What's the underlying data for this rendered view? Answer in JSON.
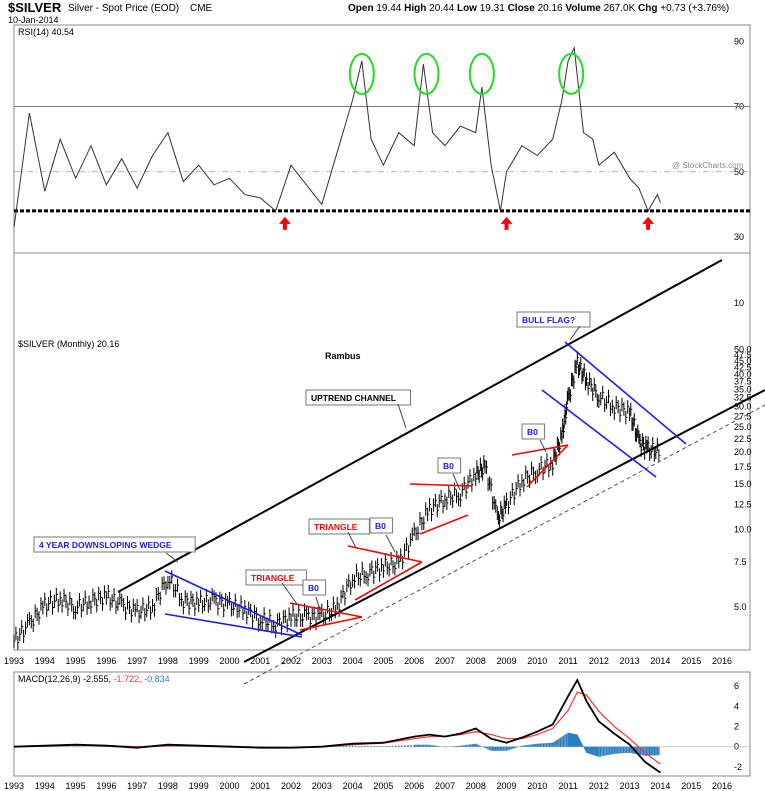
{
  "header": {
    "symbol": "$SILVER",
    "description": "Silver - Spot Price (EOD)",
    "exchange": "CME",
    "date": "10-Jan-2014",
    "quote": {
      "open_label": "Open",
      "open": "19.44",
      "high_label": "High",
      "high": "20.44",
      "low_label": "Low",
      "low": "19.31",
      "close_label": "Close",
      "close": "20.16",
      "volume_label": "Volume",
      "volume": "267.0K",
      "chg_label": "Chg",
      "chg": "+0.73 (+3.76%)"
    },
    "watermark": "@ StockCharts.com"
  },
  "colors": {
    "trend_black": "#000000",
    "pattern_blue": "#1a1aff",
    "pattern_red": "#ff0000",
    "annotation_green": "#22dd22",
    "rsi_line": "#333333",
    "macd_signal": "#ff3333",
    "histogram": "#2a7fc0"
  },
  "chart_data": [
    {
      "type": "line",
      "panel": "RSI",
      "legend": "RSI(14) 40.54",
      "ylim": [
        30,
        95
      ],
      "yticks": [
        90,
        70,
        50,
        30,
        10
      ],
      "reference_lines": [
        70,
        50,
        38
      ],
      "x": [
        1993.0,
        1993.5,
        1994.0,
        1994.5,
        1995.0,
        1995.5,
        1996.0,
        1996.5,
        1997.0,
        1997.5,
        1998.0,
        1998.5,
        1999.0,
        1999.5,
        2000.0,
        2000.5,
        2001.0,
        2001.5,
        2002.0,
        2002.5,
        2003.0,
        2003.5,
        2004.0,
        2004.3,
        2004.6,
        2005.0,
        2005.5,
        2006.0,
        2006.3,
        2006.6,
        2007.0,
        2007.5,
        2008.0,
        2008.2,
        2008.5,
        2008.8,
        2009.0,
        2009.5,
        2010.0,
        2010.5,
        2010.8,
        2011.0,
        2011.2,
        2011.5,
        2011.8,
        2012.0,
        2012.5,
        2013.0,
        2013.3,
        2013.6,
        2013.9,
        2014.0
      ],
      "values": [
        33,
        68,
        44,
        60,
        48,
        58,
        46,
        54,
        45,
        55,
        62,
        47,
        52,
        46,
        48,
        43,
        42,
        38,
        52,
        46,
        40,
        56,
        72,
        84,
        60,
        52,
        62,
        58,
        83,
        62,
        58,
        64,
        62,
        76,
        52,
        38,
        50,
        58,
        55,
        60,
        72,
        84,
        88,
        62,
        60,
        52,
        56,
        48,
        45,
        38,
        43,
        40.54
      ],
      "markers": [
        {
          "type": "arrow-up",
          "x": 2001.8,
          "color": "#ff0000"
        },
        {
          "type": "arrow-up",
          "x": 2009.0,
          "color": "#ff0000"
        },
        {
          "type": "arrow-up",
          "x": 2013.6,
          "color": "#ff0000"
        }
      ],
      "ellipses_x": [
        2004.3,
        2006.4,
        2008.2,
        2011.1
      ]
    },
    {
      "type": "bar",
      "panel": "Price",
      "title": "Rambus",
      "legend": "$SILVER (Monthly) 20.16",
      "scale": "log",
      "ylim": [
        3.6,
        52
      ],
      "yticks": [
        50.0,
        47.5,
        45.0,
        42.5,
        40.0,
        37.5,
        35.0,
        32.5,
        30.0,
        27.5,
        25.0,
        22.5,
        20.0,
        17.5,
        15.0,
        12.5,
        10.0,
        7.5,
        5.0
      ],
      "x": [
        1993.0,
        1993.5,
        1994.0,
        1994.5,
        1995.0,
        1995.5,
        1996.0,
        1996.5,
        1997.0,
        1997.5,
        1998.0,
        1998.5,
        1999.0,
        1999.5,
        2000.0,
        2000.5,
        2001.0,
        2001.5,
        2002.0,
        2002.5,
        2003.0,
        2003.5,
        2004.0,
        2004.5,
        2005.0,
        2005.5,
        2006.0,
        2006.5,
        2007.0,
        2007.5,
        2008.0,
        2008.3,
        2008.7,
        2009.0,
        2009.5,
        2010.0,
        2010.5,
        2010.8,
        2011.0,
        2011.3,
        2011.6,
        2012.0,
        2012.5,
        2013.0,
        2013.3,
        2013.6,
        2014.0
      ],
      "values": [
        3.7,
        4.3,
        5.1,
        5.4,
        5.0,
        5.3,
        5.5,
        5.1,
        4.8,
        5.0,
        6.5,
        5.3,
        5.2,
        5.3,
        5.1,
        4.9,
        4.5,
        4.3,
        4.6,
        4.6,
        4.6,
        5.0,
        6.5,
        6.8,
        7.2,
        7.4,
        9.5,
        12.0,
        13.2,
        13.8,
        16.5,
        17.5,
        11.0,
        12.5,
        15.5,
        17.0,
        18.2,
        23.0,
        32.0,
        44.0,
        38.0,
        33.0,
        30.0,
        28.5,
        22.0,
        20.5,
        20.16
      ],
      "annotations": [
        {
          "label": "4 YEAR DOWNSLOPING WEDGE",
          "color": "#1a1aff"
        },
        {
          "label": "TRIANGLE",
          "color": "#ff0000"
        },
        {
          "label": "B0",
          "color": "#1a1aff"
        },
        {
          "label": "TRIANGLE",
          "color": "#ff0000"
        },
        {
          "label": "B0",
          "color": "#1a1aff"
        },
        {
          "label": "UPTREND CHANNEL",
          "color": "#000000"
        },
        {
          "label": "B0",
          "color": "#1a1aff"
        },
        {
          "label": "B0",
          "color": "#1a1aff"
        },
        {
          "label": "BULL FLAG?",
          "color": "#1a1aff"
        }
      ]
    },
    {
      "type": "area",
      "panel": "MACD",
      "legend": "MACD(12,26,9)",
      "legend_values": [
        "-2.555",
        "-1.722",
        "-0.834"
      ],
      "legend_colors": [
        "#000000",
        "#ff3333",
        "#2a7fc0"
      ],
      "ylim": [
        -2.5,
        7
      ],
      "yticks": [
        6,
        4,
        2,
        0,
        -2
      ],
      "x": [
        1993.0,
        1994.0,
        1995.0,
        1996.0,
        1997.0,
        1998.0,
        1999.0,
        2000.0,
        2001.0,
        2002.0,
        2003.0,
        2004.0,
        2005.0,
        2006.0,
        2006.5,
        2007.0,
        2007.5,
        2008.0,
        2008.5,
        2009.0,
        2009.5,
        2010.0,
        2010.5,
        2011.0,
        2011.3,
        2011.6,
        2012.0,
        2012.5,
        2013.0,
        2013.5,
        2014.0
      ],
      "series": [
        {
          "name": "MACD",
          "values": [
            0,
            0.1,
            0.2,
            0.1,
            -0.1,
            0.2,
            0.1,
            0,
            -0.1,
            -0.1,
            0,
            0.3,
            0.4,
            1.0,
            1.2,
            1.0,
            1.3,
            1.8,
            0.8,
            0.4,
            0.9,
            1.5,
            2.2,
            5.0,
            6.6,
            4.5,
            2.5,
            1.3,
            0.2,
            -1.5,
            -2.555
          ]
        },
        {
          "name": "Signal",
          "values": [
            0,
            0.05,
            0.15,
            0.12,
            0,
            0.1,
            0.12,
            0.05,
            -0.05,
            -0.1,
            -0.02,
            0.2,
            0.35,
            0.8,
            1.0,
            1.05,
            1.2,
            1.5,
            1.2,
            0.8,
            0.8,
            1.2,
            1.8,
            3.6,
            5.4,
            5.1,
            3.5,
            2.0,
            0.8,
            -0.6,
            -1.722
          ]
        },
        {
          "name": "Histogram",
          "values": [
            0,
            0.05,
            0.05,
            -0.02,
            -0.1,
            0.1,
            -0.02,
            -0.05,
            -0.05,
            0,
            0.02,
            0.1,
            0.05,
            0.2,
            0.2,
            -0.05,
            0.1,
            0.3,
            -0.4,
            -0.4,
            0.1,
            0.3,
            0.4,
            1.4,
            1.2,
            -0.6,
            -1.0,
            -0.7,
            -0.6,
            -0.9,
            -0.834
          ]
        }
      ]
    }
  ],
  "x_axis": {
    "labels": [
      "1993",
      "1994",
      "1995",
      "1996",
      "1997",
      "1998",
      "1999",
      "2000",
      "2001",
      "2002",
      "2003",
      "2004",
      "2005",
      "2006",
      "2007",
      "2008",
      "2009",
      "2010",
      "2011",
      "2012",
      "2013",
      "2014",
      "2015",
      "2016"
    ],
    "start": 1993,
    "end": 2016
  }
}
